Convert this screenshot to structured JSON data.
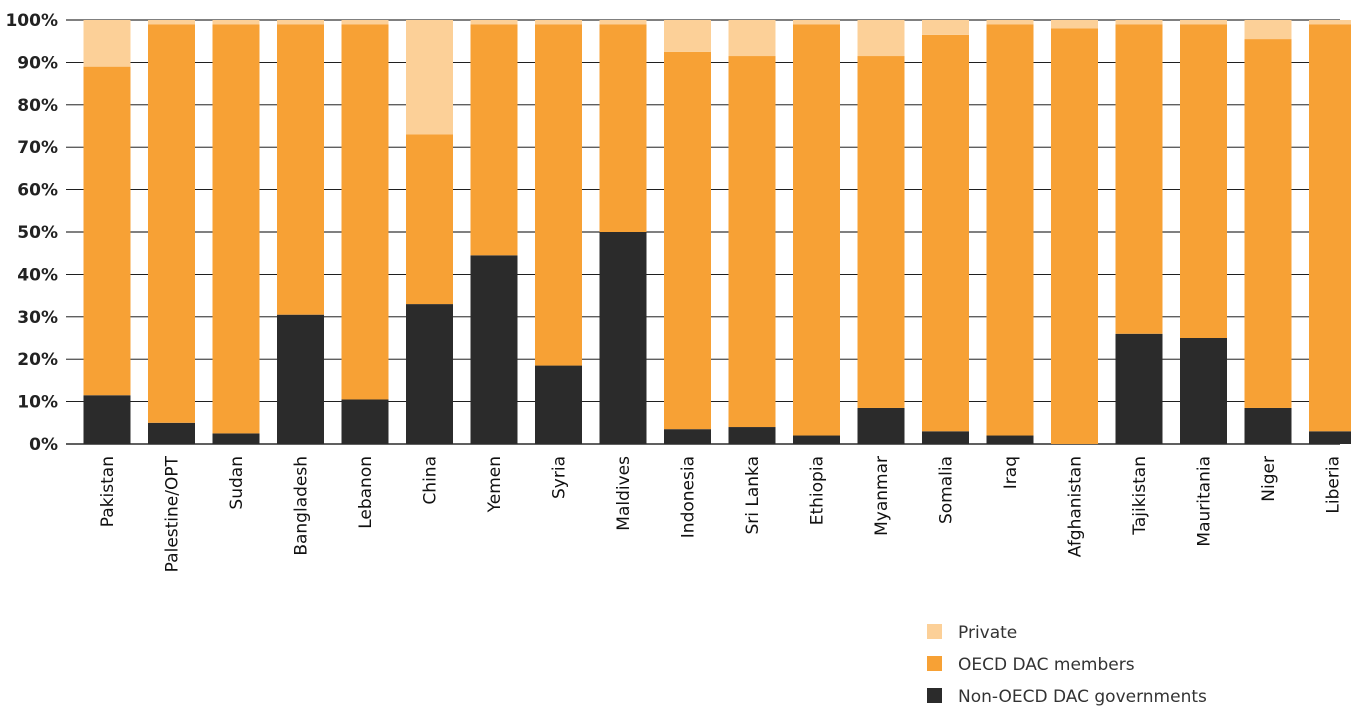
{
  "chart_data": {
    "type": "bar",
    "stacked": true,
    "categories": [
      "Pakistan",
      "Palestine/OPT",
      "Sudan",
      "Bangladesh",
      "Lebanon",
      "China",
      "Yemen",
      "Syria",
      "Maldives",
      "Indonesia",
      "Sri Lanka",
      "Ethiopia",
      "Myanmar",
      "Somalia",
      "Iraq",
      "Afghanistan",
      "Tajikistan",
      "Mauritania",
      "Niger",
      "Liberia"
    ],
    "series": [
      {
        "name": "Non-OECD DAC governments",
        "color": "#2b2b2b",
        "values": [
          11.5,
          5,
          2.5,
          30.5,
          10.5,
          33,
          44.5,
          18.5,
          50,
          3.5,
          4,
          2,
          8.5,
          3,
          2,
          0,
          26,
          25,
          8.5,
          3
        ]
      },
      {
        "name": "OECD DAC members",
        "color": "#f7a135",
        "values": [
          77.5,
          94,
          96.5,
          68.5,
          88.5,
          40,
          54.5,
          80.5,
          49,
          89,
          87.5,
          97,
          83,
          93.5,
          97,
          98,
          73,
          74,
          87,
          96
        ]
      },
      {
        "name": "Private",
        "color": "#fcd098",
        "values": [
          11,
          1,
          1,
          1,
          1,
          27,
          1,
          1,
          1,
          7.5,
          8.5,
          1,
          8.5,
          3.5,
          1,
          2,
          1,
          1,
          4.5,
          1
        ]
      }
    ],
    "y_ticks": [
      "0%",
      "10%",
      "20%",
      "30%",
      "40%",
      "50%",
      "60%",
      "70%",
      "80%",
      "90%",
      "100%"
    ],
    "ylim": [
      0,
      100
    ],
    "grid": true,
    "legend": {
      "position": "bottom-right",
      "entries": [
        "Private",
        "OECD DAC members",
        "Non-OECD DAC governments"
      ]
    }
  }
}
